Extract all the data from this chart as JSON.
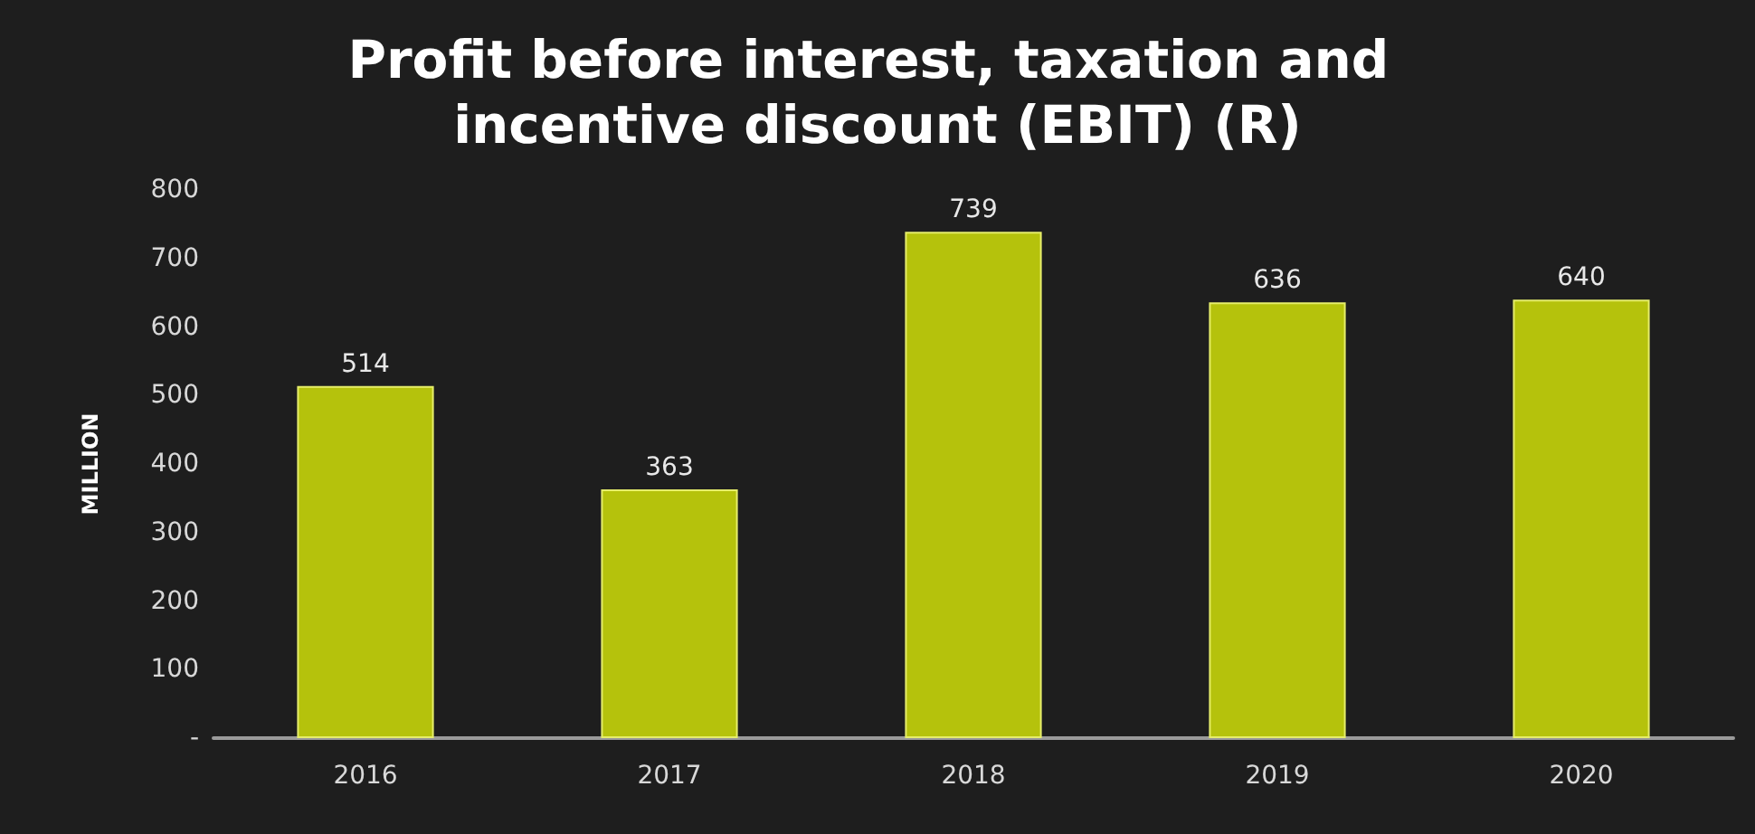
{
  "chart_data": {
    "type": "bar",
    "title": "Profit before interest, taxation and incentive discount (EBIT) (R)",
    "ylabel": "MILLION",
    "categories": [
      "2016",
      "2017",
      "2018",
      "2019",
      "2020"
    ],
    "values": [
      514,
      363,
      739,
      636,
      640
    ],
    "color": "#b5c20c",
    "ylim": [
      0,
      800
    ],
    "yticks": [
      {
        "value": 0,
        "label": "-"
      },
      100,
      200,
      300,
      400,
      500,
      600,
      700,
      800
    ],
    "data_labels": true
  }
}
